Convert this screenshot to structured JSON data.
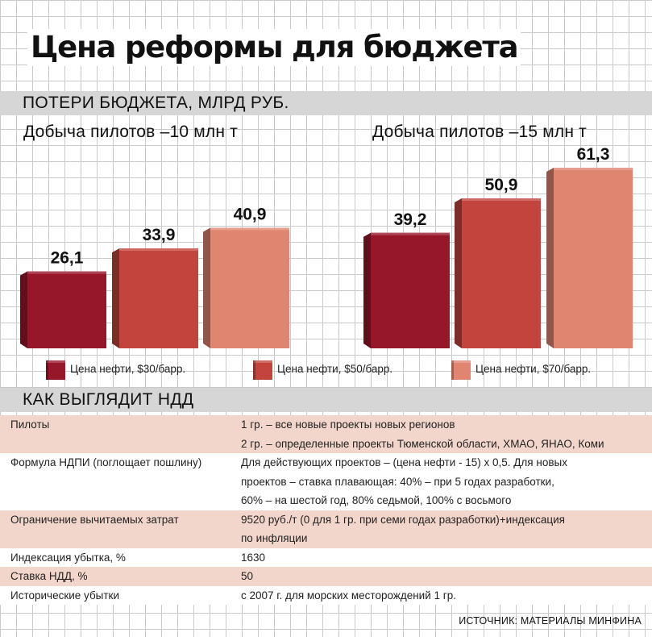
{
  "title": "Цена реформы для бюджета",
  "losses_section": "ПОТЕРИ БЮДЖЕТА, МЛРД РУБ.",
  "ndd_section": "КАК ВЫГЛЯДИТ НДД",
  "colors": {
    "dark_red": "#97172a",
    "mid_red": "#c2443d",
    "salmon": "#df8570",
    "band_gray": "#d6d6d6",
    "row_shade": "#f3d6cb"
  },
  "chart_data": {
    "type": "bar",
    "groups": [
      "Добыча пилотов –10 млн т",
      "Добыча пилотов –15 млн т"
    ],
    "series": [
      {
        "name": "Цена нефти, $30/барр.",
        "color": "#97172a",
        "values": [
          26.1,
          39.2
        ],
        "labels": [
          "26,1",
          "39,2"
        ]
      },
      {
        "name": "Цена нефти, $50/барр.",
        "color": "#c2443d",
        "values": [
          33.9,
          50.9
        ],
        "labels": [
          "33,9",
          "50,9"
        ]
      },
      {
        "name": "Цена нефти, $70/барр.",
        "color": "#df8570",
        "values": [
          40.9,
          61.3
        ],
        "labels": [
          "40,9",
          "61,3"
        ]
      }
    ],
    "ylabel": "млрд руб.",
    "ylim": [
      0,
      61.3
    ],
    "grid": true,
    "legend": "bottom"
  },
  "ndd_table": [
    {
      "param": "Пилоты",
      "value": "1 гр. – все новые проекты новых регионов"
    },
    {
      "param": "",
      "value": "2 гр. – определенные проекты Тюменской области, ХМАО, ЯНАО, Коми"
    },
    {
      "param": "Формула НДПИ (поглощает пошлину)",
      "value": "Для действующих проектов – (цена нефти - 15) х 0,5. Для новых"
    },
    {
      "param": "",
      "value": "проектов – ставка плавающая: 40% – при 5 годах разработки,"
    },
    {
      "param": "",
      "value": "60% – на шестой год, 80% седьмой, 100% с восьмого"
    },
    {
      "param": "Ограничение вычитаемых затрат",
      "value": "9520 руб./т (0 для 1 гр. при  семи годах разработки)+индексация"
    },
    {
      "param": "",
      "value": "по инфляции"
    },
    {
      "param": "Индексация убытка, %",
      "value": "1630"
    },
    {
      "param": "Ставка НДД, %",
      "value": "50"
    },
    {
      "param": "Исторические убытки",
      "value": "с 2007 г. для морских месторождений 1 гр."
    }
  ],
  "source": "ИСТОЧНИК: МАТЕРИАЛЫ МИНФИНА"
}
